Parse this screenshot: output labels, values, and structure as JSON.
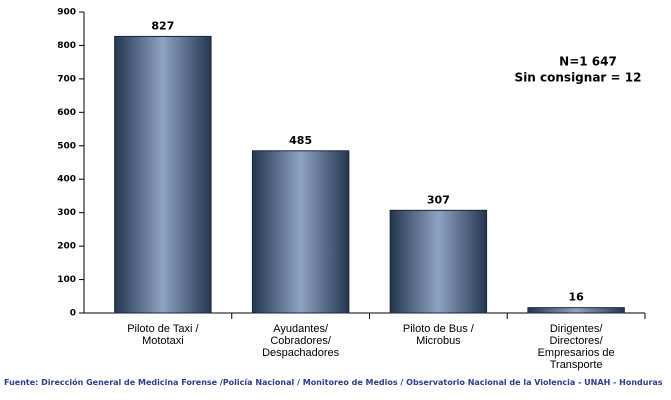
{
  "chart_data": {
    "type": "bar",
    "categories": [
      [
        "Piloto de Taxi /",
        "Mototaxi"
      ],
      [
        "Ayudantes/",
        "Cobradores/",
        "Despachadores"
      ],
      [
        "Piloto de Bus /",
        "Microbus"
      ],
      [
        "Dirigentes/",
        "Directores/",
        "Empresarios de",
        "Transporte"
      ]
    ],
    "values": [
      827,
      485,
      307,
      16
    ],
    "color": "#3a5170",
    "ylim": [
      0,
      900
    ],
    "yticks": [
      0,
      100,
      200,
      300,
      400,
      500,
      600,
      700,
      800,
      900
    ],
    "grid": false,
    "annotations": [
      "N=1 647",
      "Sin consignar = 12"
    ],
    "source": "Fuente: Dirección General de Medicina Forense /Policía Nacional / Monitoreo de Medios / Observatorio Nacional de la Violencia - UNAH - Honduras"
  }
}
